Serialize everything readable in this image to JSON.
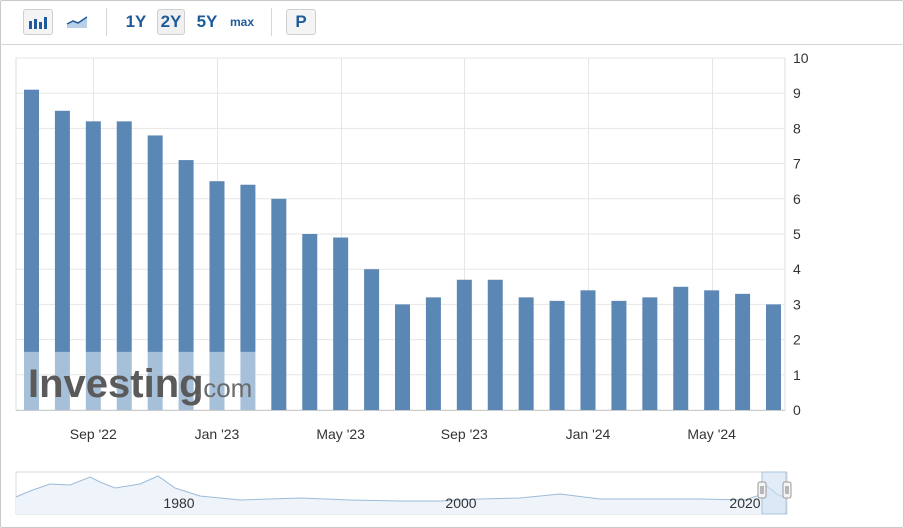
{
  "toolbar": {
    "bar_icon": "bar-chart-icon",
    "area_icon": "area-chart-icon",
    "ranges": [
      "1Y",
      "2Y",
      "5Y",
      "max"
    ],
    "active_range": "2Y",
    "p_button": "P"
  },
  "watermark": {
    "brand": "Investing",
    "suffix": ".com"
  },
  "colors": {
    "bar": "#5b87b4",
    "bar_faded": "#a7c0d9",
    "grid": "#e6e6e6",
    "navigator_line": "#9dbbd8",
    "navigator_fill": "#cfe0f1"
  },
  "chart_data": {
    "type": "bar",
    "categories": [
      "Jul '22",
      "Aug '22",
      "Sep '22",
      "Oct '22",
      "Nov '22",
      "Dec '22",
      "Jan '23",
      "Feb '23",
      "Mar '23",
      "Apr '23",
      "May '23",
      "Jun '23",
      "Jul '23",
      "Aug '23",
      "Sep '23",
      "Oct '23",
      "Nov '23",
      "Dec '23",
      "Jan '24",
      "Feb '24",
      "Mar '24",
      "Apr '24",
      "May '24",
      "Jun '24",
      "Jul '24"
    ],
    "values": [
      9.1,
      8.5,
      8.2,
      8.2,
      7.8,
      7.1,
      6.5,
      6.4,
      6.0,
      5.0,
      4.9,
      4.0,
      3.0,
      3.2,
      3.7,
      3.7,
      3.2,
      3.1,
      3.4,
      3.1,
      3.2,
      3.5,
      3.4,
      3.3,
      3.0
    ],
    "x_tick_labels": [
      "Sep '22",
      "Jan '23",
      "May '23",
      "Sep '23",
      "Jan '24",
      "May '24"
    ],
    "y_ticks": [
      0,
      1,
      2,
      3,
      4,
      5,
      6,
      7,
      8,
      9,
      10
    ],
    "ylim": [
      0,
      10
    ],
    "y_axis_position": "right",
    "grid": true,
    "navigator": {
      "x_tick_labels": [
        "1980",
        "2000",
        "2020"
      ]
    }
  }
}
